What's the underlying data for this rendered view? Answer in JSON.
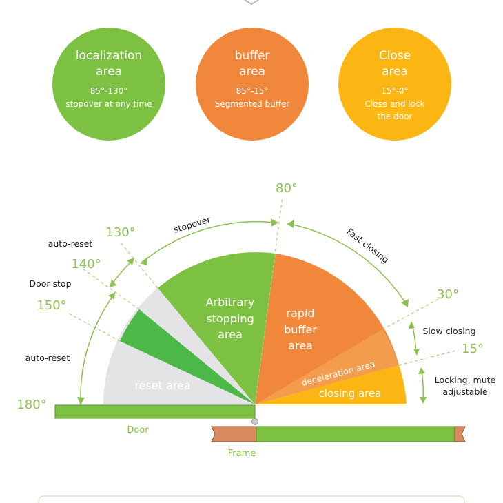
{
  "colors": {
    "green": "#7dc142",
    "dark_green": "#4cb848",
    "orange": "#f0873a",
    "yellow": "#fbb614",
    "gray": "#e4e4e6",
    "angle_label": "#8dbf52",
    "frame_wood": "#d98a5e"
  },
  "circles": [
    {
      "title_1": "localization",
      "title_2": "area",
      "line_1": "85°-130°",
      "line_2": "stopover at any time",
      "line_3": "",
      "color": "#7dc142"
    },
    {
      "title_1": "buffer",
      "title_2": "area",
      "line_1": "85°-15°",
      "line_2": "Segmented buffer",
      "line_3": "",
      "color": "#f0873a"
    },
    {
      "title_1": "Close",
      "title_2": "area",
      "line_1": "15°-0°",
      "line_2": "Close and lock",
      "line_3": "the door",
      "color": "#fbb614"
    }
  ],
  "angles": {
    "a80": "80°",
    "a130": "130°",
    "a140": "140°",
    "a150": "150°",
    "a180": "180°",
    "a30": "30°",
    "a15": "15°"
  },
  "annotations": {
    "stopover": "stopover",
    "fast_closing": "Fast closing",
    "auto_reset_top": "auto-reset",
    "door_stop": "Door stop",
    "auto_reset_bottom": "auto-reset",
    "slow_closing": "Slow closing",
    "locking_1": "Locking, mute",
    "locking_2": "adjustable"
  },
  "zones": {
    "arbitrary_1": "Arbitrary",
    "arbitrary_2": "stopping",
    "arbitrary_3": "area",
    "rapid_1": "rapid",
    "rapid_2": "buffer",
    "rapid_3": "area",
    "reset": "reset area",
    "deceleration": "deceleration area",
    "closing": "closing area"
  },
  "parts": {
    "door": "Door",
    "frame": "Frame"
  }
}
